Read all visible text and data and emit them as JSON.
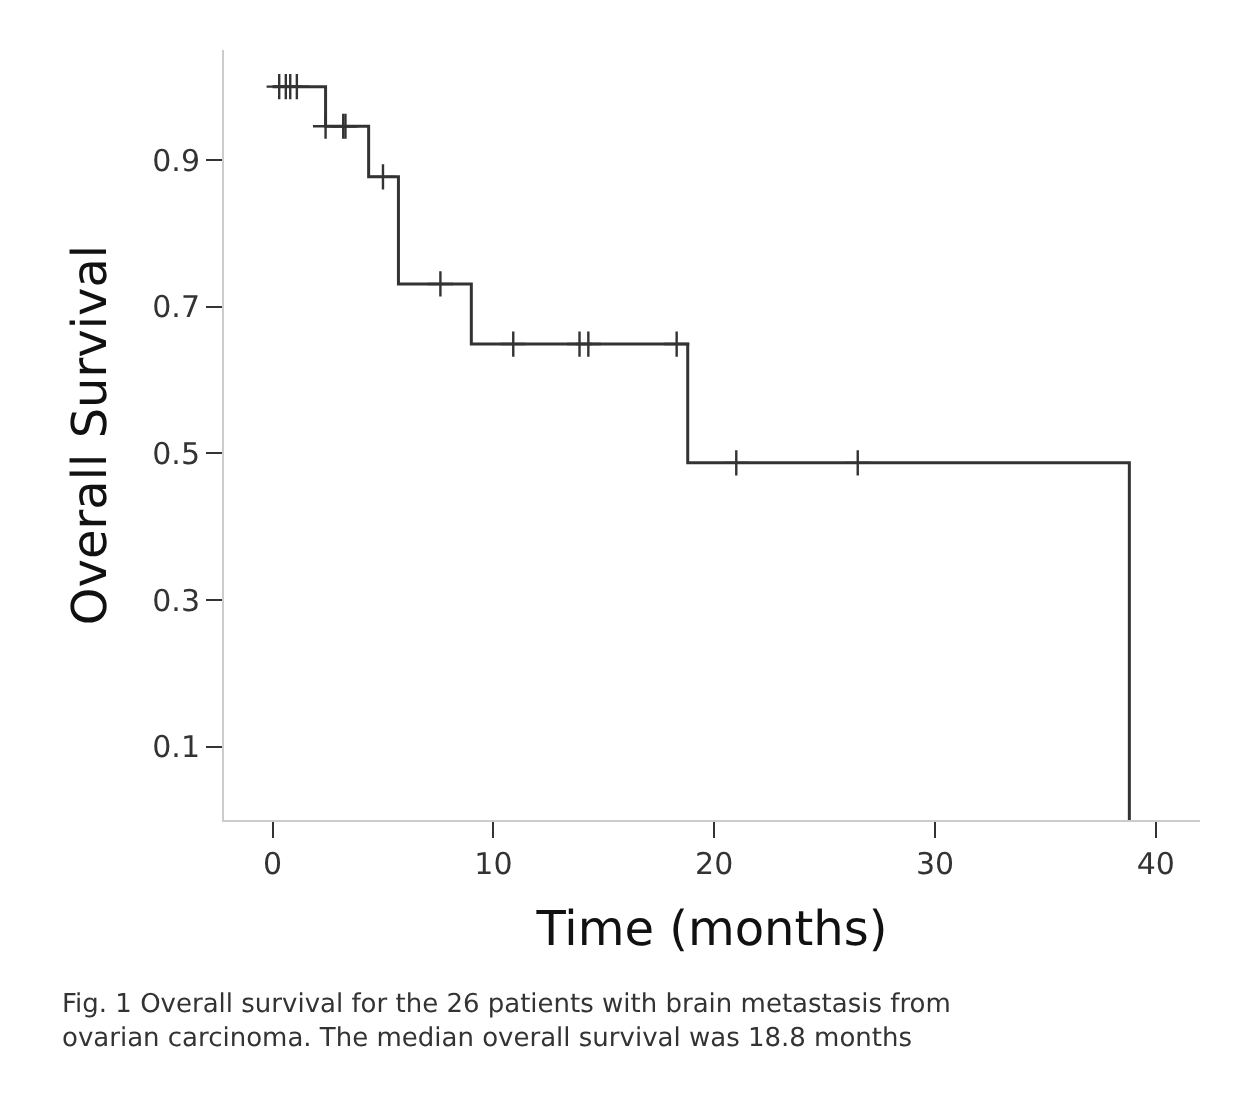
{
  "chart_data": {
    "type": "step",
    "xlabel": "Time (months)",
    "ylabel": "Overall Survival",
    "series": [
      {
        "color": "#333333",
        "x": [
          0,
          2.4,
          4.35,
          5.7,
          9.0,
          18.8,
          38.8
        ],
        "values": [
          1.0,
          0.946,
          0.877,
          0.731,
          0.649,
          0.487,
          0
        ]
      },
      {
        "type": "scatter",
        "color": "#333333",
        "marker": "cross",
        "x": [
          0.3,
          0.6,
          0.8,
          1.1,
          2.4,
          3.2,
          3.3,
          5.0,
          7.6,
          10.9,
          13.9,
          14.3,
          18.3,
          21.0,
          26.5
        ],
        "values": [
          1.0,
          1.0,
          1.0,
          1.0,
          0.946,
          0.946,
          0.946,
          0.877,
          0.731,
          0.649,
          0.649,
          0.649,
          0.649,
          0.487,
          0.487
        ]
      }
    ],
    "xlim": [
      -2.2,
      42
    ],
    "xticks": [
      0,
      10,
      20,
      30,
      40
    ],
    "ylim": [
      0,
      1.05
    ],
    "yticks": [
      0.1,
      0.3,
      0.5,
      0.7,
      0.9
    ],
    "annotations": [
      "Fig. 1 Overall survival for the 26 patients with brain metastasis from ovarian carcinoma. The median overall survival was 18.8 months"
    ]
  }
}
